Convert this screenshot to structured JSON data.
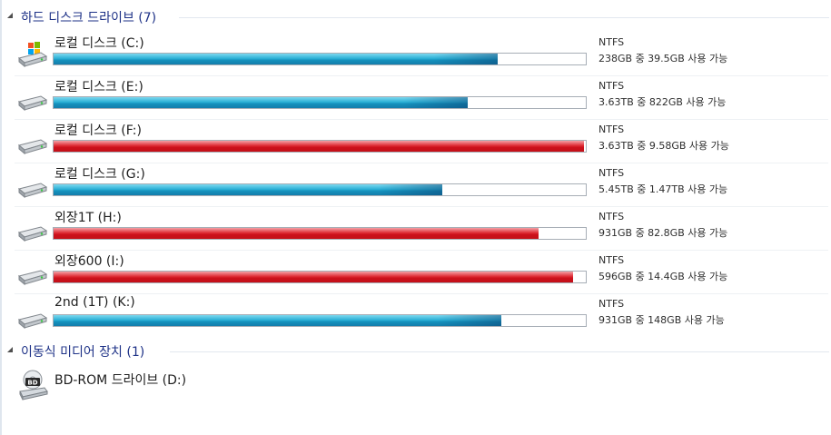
{
  "groups": {
    "hard_disks": {
      "title": "하드 디스크 드라이브 (7)"
    },
    "removable": {
      "title": "이동식 미디어 장치 (1)"
    }
  },
  "drives": [
    {
      "name": "로컬 디스크 (C:)",
      "filesystem": "NTFS",
      "space": "238GB 중 39.5GB 사용 가능",
      "used_fraction": 0.834,
      "bar_color": "blue",
      "icon": "windows-drive-icon"
    },
    {
      "name": "로컬 디스크 (E:)",
      "filesystem": "NTFS",
      "space": "3.63TB 중 822GB 사용 가능",
      "used_fraction": 0.779,
      "bar_color": "blue",
      "icon": "hard-drive-icon"
    },
    {
      "name": "로컬 디스크 (F:)",
      "filesystem": "NTFS",
      "space": "3.63TB 중 9.58GB 사용 가능",
      "used_fraction": 0.997,
      "bar_color": "red",
      "icon": "hard-drive-icon"
    },
    {
      "name": "로컬 디스크 (G:)",
      "filesystem": "NTFS",
      "space": "5.45TB 중 1.47TB 사용 가능",
      "used_fraction": 0.73,
      "bar_color": "blue",
      "icon": "hard-drive-icon"
    },
    {
      "name": "외장1T (H:)",
      "filesystem": "NTFS",
      "space": "931GB 중 82.8GB 사용 가능",
      "used_fraction": 0.911,
      "bar_color": "red",
      "icon": "hard-drive-icon"
    },
    {
      "name": "외장600 (I:)",
      "filesystem": "NTFS",
      "space": "596GB 중 14.4GB 사용 가능",
      "used_fraction": 0.976,
      "bar_color": "red",
      "icon": "hard-drive-icon"
    },
    {
      "name": "2nd (1T) (K:)",
      "filesystem": "NTFS",
      "space": "931GB 중 148GB 사용 가능",
      "used_fraction": 0.841,
      "bar_color": "blue",
      "icon": "hard-drive-icon"
    }
  ],
  "optical": {
    "name": "BD-ROM 드라이브 (D:)",
    "icon": "bd-rom-drive-icon",
    "badge": "BD"
  },
  "colors": {
    "header_text": "#1e3287",
    "bar_blue": "#1591bd",
    "bar_red": "#cc111c"
  }
}
